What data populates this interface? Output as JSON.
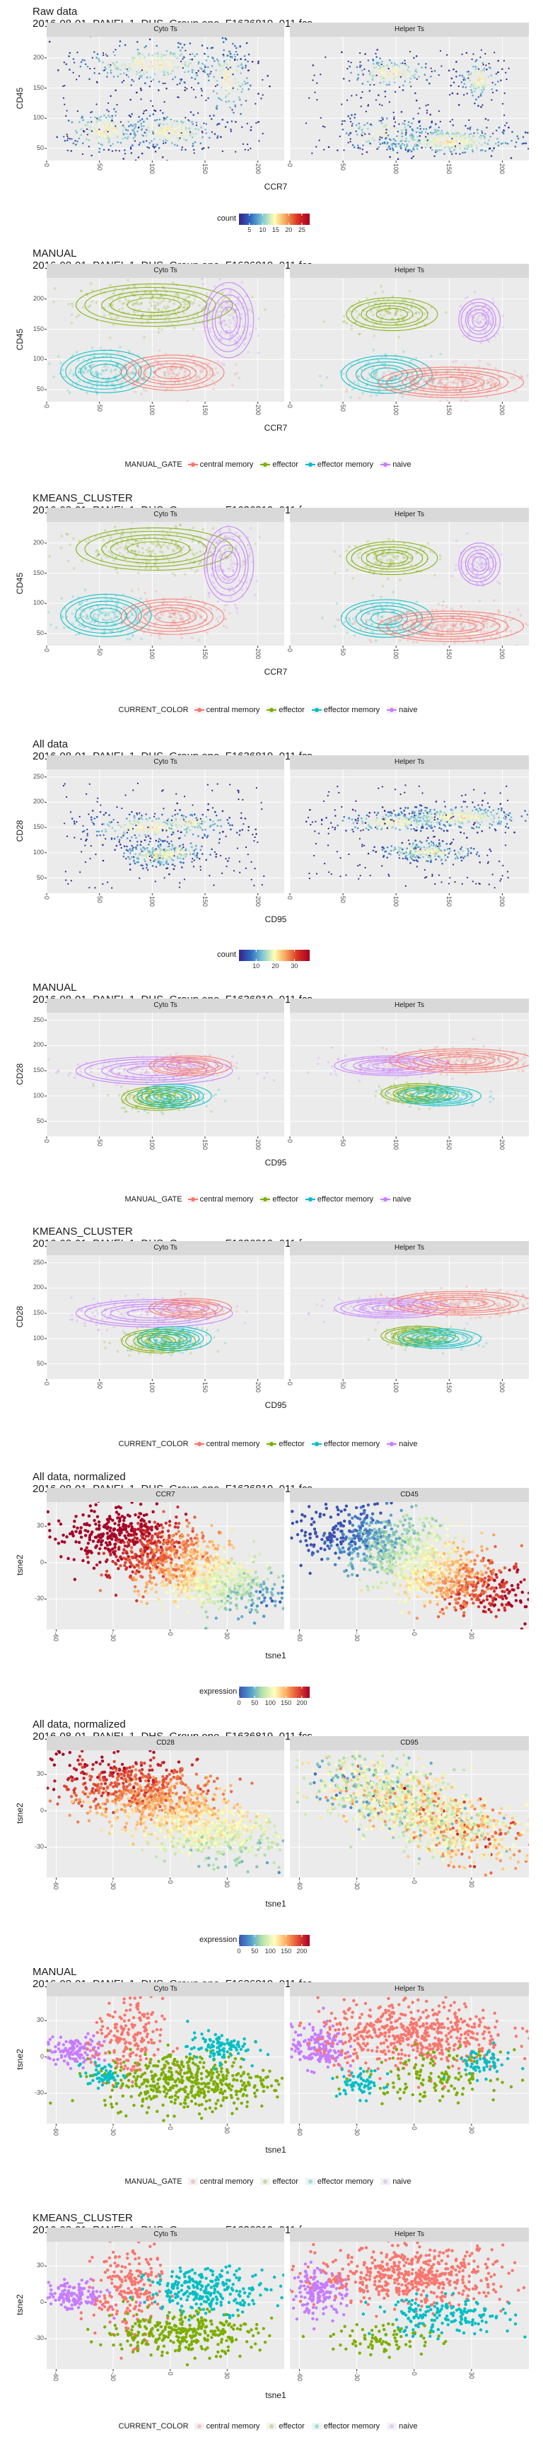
{
  "file_name": "2016-08-01_PANEL 1_DHS_Group one_F1636819_011.fcs",
  "colors": {
    "central_memory": "#F8766D",
    "effector": "#7CAE00",
    "effector_memory": "#00BFC4",
    "naive": "#C77CFF",
    "strip": "#d9d9d9",
    "panel": "#ebebeb"
  },
  "legend_classes": [
    "central memory",
    "effector",
    "effector memory",
    "naive"
  ],
  "chart_data": [
    {
      "type": "scatter",
      "title": "Raw data",
      "xlabel": "CCR7",
      "ylabel": "CD45",
      "facets": [
        "Cyto Ts",
        "Helper Ts"
      ],
      "xlim": [
        0,
        225
      ],
      "ylim": [
        30,
        235
      ],
      "x_ticks": [
        0,
        50,
        100,
        150,
        200
      ],
      "y_ticks": [
        50,
        100,
        150,
        200
      ],
      "legend": {
        "title": "count",
        "type": "gradient",
        "ticks": [
          5,
          10,
          15,
          20,
          25
        ],
        "range": [
          1,
          28
        ]
      }
    },
    {
      "type": "scatter",
      "title": "MANUAL",
      "xlabel": "CCR7",
      "ylabel": "CD45",
      "facets": [
        "Cyto Ts",
        "Helper Ts"
      ],
      "xlim": [
        0,
        225
      ],
      "ylim": [
        30,
        235
      ],
      "x_ticks": [
        0,
        50,
        100,
        150,
        200
      ],
      "y_ticks": [
        50,
        100,
        150,
        200
      ],
      "legend": {
        "title": "MANUAL_GATE",
        "type": "categorical"
      }
    },
    {
      "type": "scatter",
      "title": "KMEANS_CLUSTER",
      "xlabel": "CCR7",
      "ylabel": "CD45",
      "facets": [
        "Cyto Ts",
        "Helper Ts"
      ],
      "xlim": [
        0,
        225
      ],
      "ylim": [
        30,
        235
      ],
      "x_ticks": [
        0,
        50,
        100,
        150,
        200
      ],
      "y_ticks": [
        50,
        100,
        150,
        200
      ],
      "legend": {
        "title": "CURRENT_COLOR",
        "type": "categorical"
      }
    },
    {
      "type": "scatter",
      "title": "All data",
      "xlabel": "CD95",
      "ylabel": "CD28",
      "facets": [
        "Cyto Ts",
        "Helper Ts"
      ],
      "xlim": [
        0,
        225
      ],
      "ylim": [
        20,
        265
      ],
      "x_ticks": [
        0,
        50,
        100,
        150,
        200
      ],
      "y_ticks": [
        50,
        100,
        150,
        200,
        250
      ],
      "legend": {
        "title": "count",
        "type": "gradient",
        "ticks": [
          10,
          20,
          30
        ],
        "range": [
          1,
          38
        ]
      }
    },
    {
      "type": "scatter",
      "title": "MANUAL",
      "xlabel": "CD95",
      "ylabel": "CD28",
      "facets": [
        "Cyto Ts",
        "Helper Ts"
      ],
      "xlim": [
        0,
        225
      ],
      "ylim": [
        20,
        265
      ],
      "x_ticks": [
        0,
        50,
        100,
        150,
        200
      ],
      "y_ticks": [
        50,
        100,
        150,
        200,
        250
      ],
      "legend": {
        "title": "MANUAL_GATE",
        "type": "categorical"
      }
    },
    {
      "type": "scatter",
      "title": "KMEANS_CLUSTER",
      "xlabel": "CD95",
      "ylabel": "CD28",
      "facets": [
        "Cyto Ts",
        "Helper Ts"
      ],
      "xlim": [
        0,
        225
      ],
      "ylim": [
        20,
        265
      ],
      "x_ticks": [
        0,
        50,
        100,
        150,
        200
      ],
      "y_ticks": [
        50,
        100,
        150,
        200,
        250
      ],
      "legend": {
        "title": "CURRENT_COLOR",
        "type": "categorical"
      }
    },
    {
      "type": "scatter",
      "title": "All data, normalized",
      "xlabel": "tsne1",
      "ylabel": "tsne2",
      "facets": [
        "CCR7",
        "CD45"
      ],
      "xlim": [
        -65,
        60
      ],
      "ylim": [
        -55,
        50
      ],
      "x_ticks": [
        -60,
        -30,
        0,
        30
      ],
      "y_ticks": [
        -30,
        0,
        30
      ],
      "legend": {
        "title": "expression",
        "type": "gradient",
        "ticks": [
          0,
          50,
          100,
          150,
          200
        ],
        "range": [
          0,
          225
        ]
      }
    },
    {
      "type": "scatter",
      "title": "All data, normalized",
      "xlabel": "tsne1",
      "ylabel": "tsne2",
      "facets": [
        "CD28",
        "CD95"
      ],
      "xlim": [
        -65,
        60
      ],
      "ylim": [
        -55,
        50
      ],
      "x_ticks": [
        -60,
        -30,
        0,
        30
      ],
      "y_ticks": [
        -30,
        0,
        30
      ],
      "legend": {
        "title": "expression",
        "type": "gradient",
        "ticks": [
          0,
          50,
          100,
          150,
          200
        ],
        "range": [
          0,
          225
        ]
      }
    },
    {
      "type": "scatter",
      "title": "MANUAL",
      "xlabel": "tsne1",
      "ylabel": "tsne2",
      "facets": [
        "Cyto Ts",
        "Helper Ts"
      ],
      "xlim": [
        -65,
        60
      ],
      "ylim": [
        -55,
        50
      ],
      "x_ticks": [
        -60,
        -30,
        0,
        30
      ],
      "y_ticks": [
        -30,
        0,
        30
      ],
      "legend": {
        "title": "MANUAL_GATE",
        "type": "categorical"
      }
    },
    {
      "type": "scatter",
      "title": "KMEANS_CLUSTER",
      "xlabel": "tsne1",
      "ylabel": "tsne2",
      "facets": [
        "Cyto Ts",
        "Helper Ts"
      ],
      "xlim": [
        -65,
        60
      ],
      "ylim": [
        -55,
        50
      ],
      "x_ticks": [
        -60,
        -30,
        0,
        30
      ],
      "y_ticks": [
        -30,
        0,
        30
      ],
      "legend": {
        "title": "CURRENT_COLOR",
        "type": "categorical"
      }
    }
  ]
}
